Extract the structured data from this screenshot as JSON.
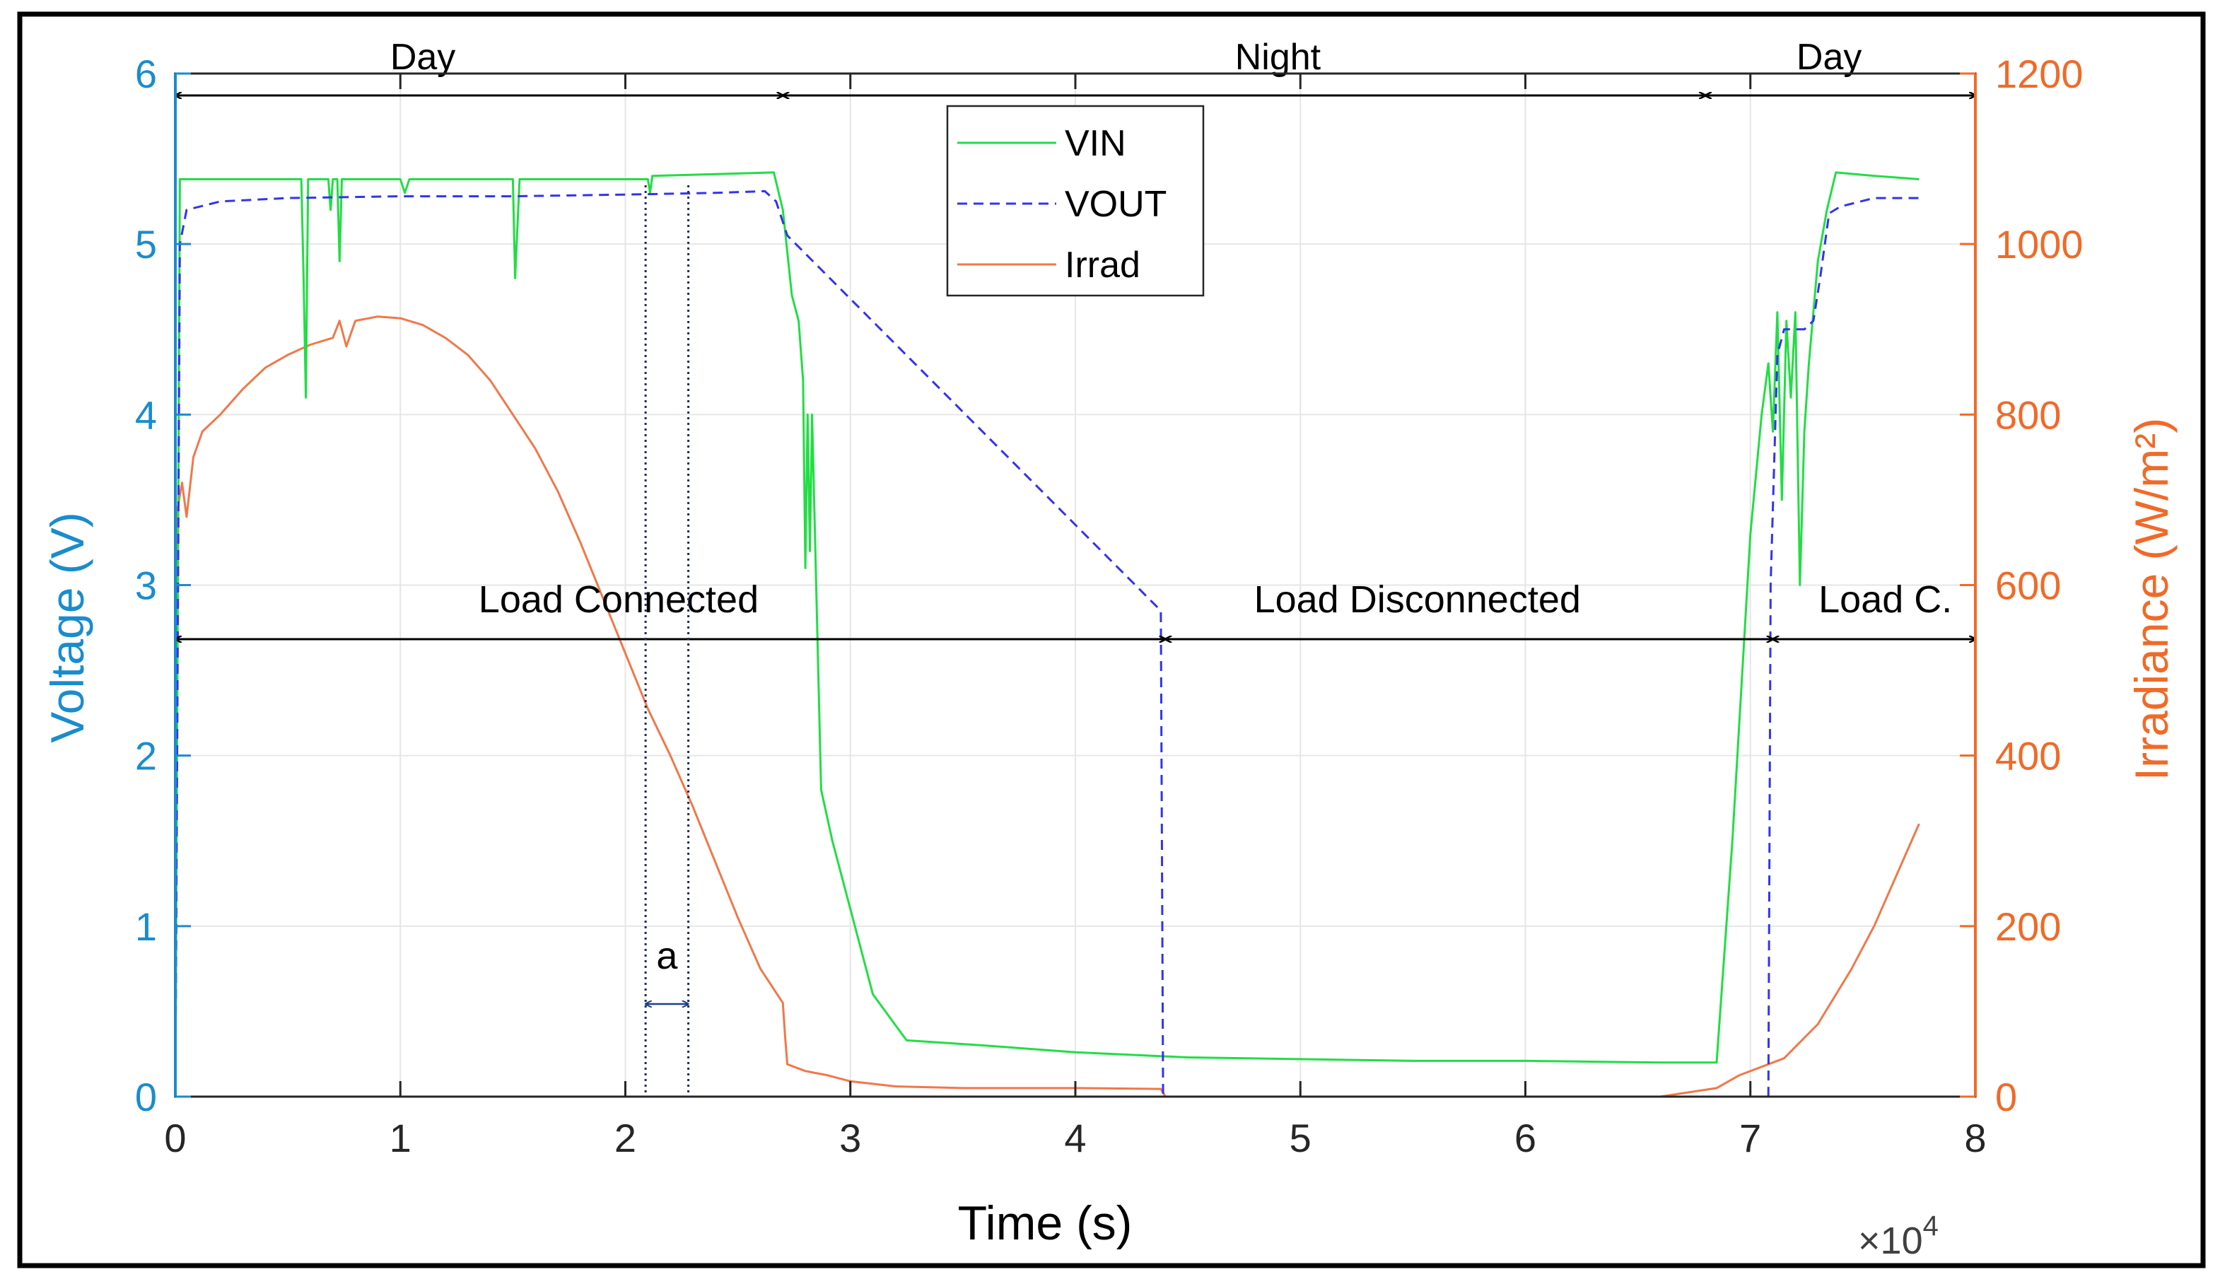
{
  "chart_data": {
    "type": "line",
    "xlabel": "Time (s)",
    "x_multiplier_label": "×10",
    "x_multiplier_exponent": "4",
    "ylabel_left": "Voltage (V)",
    "ylabel_right": "Irradiance (W/m²)",
    "xlim": [
      0,
      8
    ],
    "ylim_left": [
      0,
      6
    ],
    "ylim_right": [
      0,
      1200
    ],
    "x_ticks": [
      0,
      1,
      2,
      3,
      4,
      5,
      6,
      7,
      8
    ],
    "x_tick_labels": [
      "0",
      "1",
      "2",
      "3",
      "4",
      "5",
      "6",
      "7",
      "8"
    ],
    "y_left_ticks": [
      0,
      1,
      2,
      3,
      4,
      5,
      6
    ],
    "y_left_tick_labels": [
      "0",
      "1",
      "2",
      "3",
      "4",
      "5",
      "6"
    ],
    "y_right_ticks": [
      0,
      200,
      400,
      600,
      800,
      1000,
      1200
    ],
    "y_right_tick_labels": [
      "0",
      "200",
      "400",
      "600",
      "800",
      "1000",
      "1200"
    ],
    "grid": true,
    "legend_position": "top-center",
    "colors": {
      "vin": "#22dd44",
      "vout": "#3333ee",
      "irrad": "#f0784a",
      "left_axis": "#1a8ccc",
      "right_axis": "#f06a28",
      "annotation": "#000000",
      "a_marker": "#1f3f8c",
      "grid": "#e6e6e6"
    },
    "series": [
      {
        "name": "VIN",
        "axis": "left",
        "style": "solid",
        "points": [
          [
            0,
            0
          ],
          [
            0.02,
            5.38
          ],
          [
            0.3,
            5.38
          ],
          [
            0.56,
            5.38
          ],
          [
            0.57,
            4.8
          ],
          [
            0.58,
            4.1
          ],
          [
            0.59,
            5.38
          ],
          [
            0.68,
            5.38
          ],
          [
            0.69,
            5.2
          ],
          [
            0.7,
            5.38
          ],
          [
            0.72,
            5.38
          ],
          [
            0.73,
            4.9
          ],
          [
            0.74,
            5.38
          ],
          [
            1.0,
            5.38
          ],
          [
            1.02,
            5.3
          ],
          [
            1.04,
            5.38
          ],
          [
            1.5,
            5.38
          ],
          [
            1.51,
            4.8
          ],
          [
            1.53,
            5.38
          ],
          [
            2.1,
            5.38
          ],
          [
            2.11,
            5.3
          ],
          [
            2.12,
            5.4
          ],
          [
            2.66,
            5.42
          ],
          [
            2.7,
            5.2
          ],
          [
            2.74,
            4.7
          ],
          [
            2.77,
            4.55
          ],
          [
            2.79,
            4.2
          ],
          [
            2.8,
            3.1
          ],
          [
            2.81,
            4.0
          ],
          [
            2.82,
            3.2
          ],
          [
            2.83,
            4.0
          ],
          [
            2.85,
            2.9
          ],
          [
            2.87,
            1.8
          ],
          [
            2.92,
            1.5
          ],
          [
            3.0,
            1.1
          ],
          [
            3.1,
            0.6
          ],
          [
            3.25,
            0.33
          ],
          [
            3.6,
            0.3
          ],
          [
            4.0,
            0.26
          ],
          [
            4.5,
            0.23
          ],
          [
            5.5,
            0.21
          ],
          [
            6.0,
            0.21
          ],
          [
            6.6,
            0.2
          ],
          [
            6.85,
            0.2
          ],
          [
            6.92,
            1.5
          ],
          [
            7.0,
            3.3
          ],
          [
            7.05,
            4.0
          ],
          [
            7.08,
            4.3
          ],
          [
            7.1,
            3.9
          ],
          [
            7.12,
            4.6
          ],
          [
            7.14,
            3.5
          ],
          [
            7.16,
            4.55
          ],
          [
            7.18,
            4.1
          ],
          [
            7.2,
            4.6
          ],
          [
            7.22,
            3.0
          ],
          [
            7.24,
            3.9
          ],
          [
            7.26,
            4.3
          ],
          [
            7.3,
            4.9
          ],
          [
            7.34,
            5.2
          ],
          [
            7.38,
            5.42
          ],
          [
            7.55,
            5.4
          ],
          [
            7.75,
            5.38
          ]
        ]
      },
      {
        "name": "VOUT",
        "axis": "left",
        "style": "dashed",
        "points": [
          [
            0,
            0
          ],
          [
            0.02,
            5.0
          ],
          [
            0.05,
            5.2
          ],
          [
            0.2,
            5.25
          ],
          [
            0.5,
            5.27
          ],
          [
            1.0,
            5.28
          ],
          [
            1.5,
            5.28
          ],
          [
            2.0,
            5.29
          ],
          [
            2.4,
            5.3
          ],
          [
            2.62,
            5.31
          ],
          [
            2.67,
            5.25
          ],
          [
            2.72,
            5.05
          ],
          [
            4.38,
            2.85
          ],
          [
            4.39,
            0.0
          ],
          [
            5.5,
            0.0
          ],
          [
            7.08,
            0.0
          ],
          [
            7.09,
            3.0
          ],
          [
            7.12,
            4.35
          ],
          [
            7.15,
            4.5
          ],
          [
            7.2,
            4.5
          ],
          [
            7.24,
            4.5
          ],
          [
            7.28,
            4.55
          ],
          [
            7.31,
            4.8
          ],
          [
            7.35,
            5.18
          ],
          [
            7.4,
            5.22
          ],
          [
            7.55,
            5.27
          ],
          [
            7.75,
            5.27
          ]
        ]
      },
      {
        "name": "Irrad",
        "axis": "right",
        "style": "solid",
        "points": [
          [
            0.0,
            0
          ],
          [
            0.01,
            690
          ],
          [
            0.03,
            720
          ],
          [
            0.05,
            680
          ],
          [
            0.08,
            750
          ],
          [
            0.12,
            780
          ],
          [
            0.2,
            800
          ],
          [
            0.3,
            830
          ],
          [
            0.4,
            855
          ],
          [
            0.5,
            870
          ],
          [
            0.6,
            882
          ],
          [
            0.7,
            890
          ],
          [
            0.73,
            910
          ],
          [
            0.76,
            880
          ],
          [
            0.8,
            910
          ],
          [
            0.9,
            915
          ],
          [
            1.0,
            913
          ],
          [
            1.1,
            905
          ],
          [
            1.2,
            890
          ],
          [
            1.3,
            870
          ],
          [
            1.4,
            840
          ],
          [
            1.5,
            800
          ],
          [
            1.6,
            760
          ],
          [
            1.7,
            710
          ],
          [
            1.8,
            650
          ],
          [
            1.9,
            585
          ],
          [
            2.0,
            520
          ],
          [
            2.1,
            455
          ],
          [
            2.2,
            400
          ],
          [
            2.3,
            340
          ],
          [
            2.4,
            275
          ],
          [
            2.5,
            210
          ],
          [
            2.6,
            150
          ],
          [
            2.7,
            110
          ],
          [
            2.71,
            70
          ],
          [
            2.72,
            38
          ],
          [
            2.8,
            30
          ],
          [
            2.9,
            25
          ],
          [
            3.0,
            18
          ],
          [
            3.2,
            12
          ],
          [
            3.5,
            10
          ],
          [
            4.0,
            10
          ],
          [
            4.38,
            9
          ],
          [
            4.4,
            0
          ],
          [
            6.0,
            0
          ],
          [
            6.6,
            0
          ],
          [
            6.85,
            10
          ],
          [
            6.95,
            25
          ],
          [
            7.05,
            35
          ],
          [
            7.15,
            45
          ],
          [
            7.3,
            85
          ],
          [
            7.45,
            150
          ],
          [
            7.55,
            200
          ],
          [
            7.65,
            260
          ],
          [
            7.75,
            320
          ]
        ]
      }
    ],
    "annotations": {
      "top": [
        {
          "label": "Day",
          "x_start": 0,
          "x_end": 2.7,
          "label_x": 1.1
        },
        {
          "label": "Night",
          "x_start": 2.7,
          "x_end": 6.8,
          "label_x": 4.9
        },
        {
          "label": "Day",
          "x_start": 6.8,
          "x_end": 8.0,
          "label_x": 7.35
        }
      ],
      "bottom": [
        {
          "label": "Load Connected",
          "x_start": 0,
          "x_end": 4.4,
          "label_x": 1.97
        },
        {
          "label": "Load Disconnected",
          "x_start": 4.4,
          "x_end": 7.1,
          "label_x": 5.52
        },
        {
          "label": "Load C.",
          "x_start": 7.1,
          "x_end": 8.0,
          "label_x": 7.6
        }
      ],
      "interval": {
        "label": "a",
        "x_start": 2.09,
        "x_end": 2.28
      }
    }
  }
}
